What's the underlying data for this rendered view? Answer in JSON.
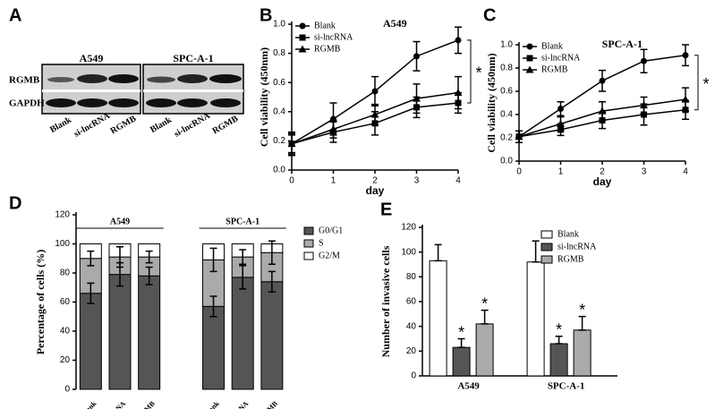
{
  "blot": {
    "panel": "A",
    "groups": [
      {
        "name": "A549",
        "lanes": [
          "Blank",
          "si-lncRNA",
          "RGMB"
        ]
      },
      {
        "name": "SPC-A-1",
        "lanes": [
          "Blank",
          "si-lncRNA",
          "RGMB"
        ]
      }
    ],
    "rows": [
      "RGMB",
      "GAPDH"
    ]
  },
  "chart_data": [
    {
      "type": "line",
      "panel": "B",
      "title": "A549",
      "x_label": "day",
      "y_label": "Cell viability (450nm)",
      "x": [
        0,
        1,
        2,
        3,
        4
      ],
      "xlim": [
        0,
        4
      ],
      "xticks": [
        0,
        1,
        2,
        3,
        4
      ],
      "ylim": [
        0,
        1
      ],
      "yticks": [
        {
          "value": 0,
          "label": "0.0"
        },
        0.2,
        0.4,
        0.6,
        0.8,
        {
          "value": 1,
          "label": "1.0"
        }
      ],
      "legend": "upper left",
      "annotation": "*",
      "series": [
        {
          "name": "Blank",
          "color": "#000000",
          "marker": "circle",
          "values": [
            0.18,
            0.35,
            0.54,
            0.78,
            0.89
          ],
          "errors": [
            0.08,
            0.11,
            0.1,
            0.1,
            0.09
          ]
        },
        {
          "name": "si-lncRNA",
          "color": "#000000",
          "marker": "square",
          "values": [
            0.18,
            0.26,
            0.32,
            0.43,
            0.46
          ],
          "errors": [
            0.07,
            0.07,
            0.08,
            0.07,
            0.07
          ]
        },
        {
          "name": "RGMB",
          "color": "#000000",
          "marker": "triangle",
          "values": [
            0.18,
            0.28,
            0.38,
            0.49,
            0.53
          ],
          "errors": [
            0.06,
            0.06,
            0.07,
            0.1,
            0.11
          ]
        }
      ]
    },
    {
      "type": "line",
      "panel": "C",
      "title": "SPC-A-1",
      "x_label": "day",
      "y_label": "Cell viability (450nm)",
      "x": [
        0,
        1,
        2,
        3,
        4
      ],
      "xlim": [
        0,
        4
      ],
      "xticks": [
        0,
        1,
        2,
        3,
        4
      ],
      "ylim": [
        0,
        1
      ],
      "yticks": [
        {
          "value": 0,
          "label": "0.0"
        },
        0.2,
        0.4,
        0.6,
        0.8,
        {
          "value": 1,
          "label": "1.0"
        }
      ],
      "legend": "upper left",
      "annotation": "*",
      "series": [
        {
          "name": "Blank",
          "color": "#000000",
          "marker": "circle",
          "values": [
            0.21,
            0.45,
            0.69,
            0.86,
            0.91
          ],
          "errors": [
            0.05,
            0.06,
            0.09,
            0.1,
            0.09
          ]
        },
        {
          "name": "si-lncRNA",
          "color": "#000000",
          "marker": "square",
          "values": [
            0.21,
            0.27,
            0.35,
            0.4,
            0.44
          ],
          "errors": [
            0.05,
            0.05,
            0.07,
            0.09,
            0.08
          ]
        },
        {
          "name": "RGMB",
          "color": "#000000",
          "marker": "triangle",
          "values": [
            0.21,
            0.32,
            0.43,
            0.48,
            0.53
          ],
          "errors": [
            0.05,
            0.06,
            0.08,
            0.07,
            0.1
          ]
        }
      ]
    },
    {
      "type": "stacked_bar",
      "panel": "D",
      "y_label": "Percentage of cells (%)",
      "groups": [
        {
          "name": "A549",
          "categories": [
            "Blank",
            "si-lncRNA",
            "RGMB"
          ]
        },
        {
          "name": "SPC-A-1",
          "categories": [
            "Blank",
            "si-lncRNA",
            "RGMB"
          ]
        }
      ],
      "ylim": [
        0,
        120
      ],
      "yticks": [
        0,
        20,
        40,
        60,
        80,
        100,
        120
      ],
      "legend": "right",
      "series": [
        {
          "name": "G0/G1",
          "color": "#555555",
          "values": [
            66,
            79,
            78,
            57,
            77,
            74
          ],
          "errors": [
            7,
            8,
            6,
            7,
            8,
            7
          ]
        },
        {
          "name": "S",
          "color": "#aaaaaa",
          "values": [
            24,
            12,
            13,
            32,
            14,
            20
          ],
          "errors": [
            5,
            7,
            4,
            8,
            5,
            8
          ]
        },
        {
          "name": "G2/M",
          "color": "#ffffff",
          "values": [
            10,
            9,
            9,
            11,
            9,
            6
          ]
        }
      ]
    },
    {
      "type": "bar",
      "panel": "E",
      "y_label": "Number of invasive cells",
      "categories": [
        "A549",
        "SPC-A-1"
      ],
      "ylim": [
        0,
        120
      ],
      "yticks": [
        0,
        20,
        40,
        60,
        80,
        100,
        120
      ],
      "legend": "upper right",
      "annotation": "*",
      "series": [
        {
          "name": "Blank",
          "color": "#ffffff",
          "values": [
            93,
            92
          ],
          "errors": [
            13,
            17
          ]
        },
        {
          "name": "si-lncRNA",
          "color": "#555555",
          "values": [
            23,
            26
          ],
          "errors": [
            7,
            6
          ]
        },
        {
          "name": "RGMB",
          "color": "#aaaaaa",
          "values": [
            42,
            37
          ],
          "errors": [
            11,
            11
          ]
        }
      ]
    }
  ]
}
